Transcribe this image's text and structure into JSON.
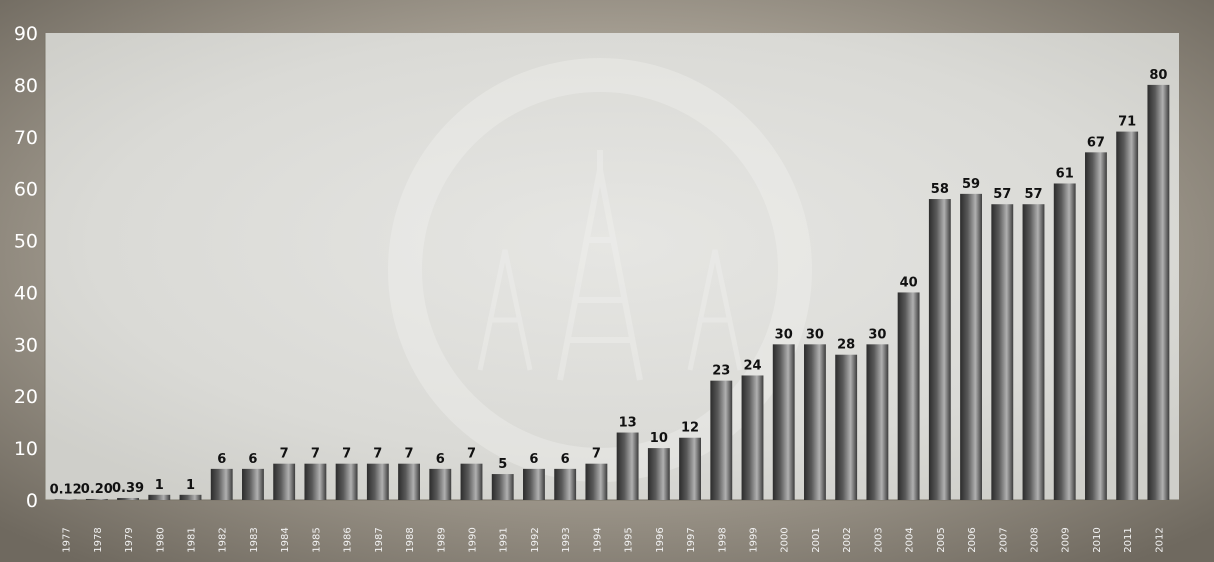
{
  "colors": {
    "frame": "#8e887c",
    "plot_bg": "#dcdcd8",
    "bar_dark": "#3a3a3a",
    "bar_light": "#a8a8a8",
    "tick_text": "#ffffff",
    "label_text": "#111111"
  },
  "chart_data": {
    "type": "bar",
    "title": "",
    "xlabel": "",
    "ylabel": "",
    "ylim": [
      0,
      90
    ],
    "yticks": [
      "0",
      "10",
      "20",
      "30",
      "40",
      "50",
      "60",
      "70",
      "80",
      "90"
    ],
    "grid": false,
    "categories": [
      "1977",
      "1978",
      "1979",
      "1980",
      "1981",
      "1982",
      "1983",
      "1984",
      "1985",
      "1986",
      "1987",
      "1988",
      "1989",
      "1990",
      "1991",
      "1992",
      "1993",
      "1994",
      "1995",
      "1996",
      "1997",
      "1998",
      "1999",
      "2000",
      "2001",
      "2002",
      "2003",
      "2004",
      "2005",
      "2006",
      "2007",
      "2008",
      "2009",
      "2010",
      "2011",
      "2012"
    ],
    "values": [
      0.12,
      0.2,
      0.39,
      1,
      1,
      6,
      6,
      7,
      7,
      7,
      7,
      7,
      6,
      7,
      5,
      6,
      6,
      7,
      13,
      10,
      12,
      23,
      24,
      30,
      30,
      28,
      30,
      40,
      58,
      59,
      57,
      57,
      61,
      67,
      71,
      80
    ],
    "value_labels": [
      "0.12",
      "0.20",
      "0.39",
      "1",
      "1",
      "6",
      "6",
      "7",
      "7",
      "7",
      "7",
      "7",
      "6",
      "7",
      "5",
      "6",
      "6",
      "7",
      "13",
      "10",
      "12",
      "23",
      "24",
      "30",
      "30",
      "28",
      "30",
      "40",
      "58",
      "59",
      "57",
      "57",
      "61",
      "67",
      "71",
      "80"
    ]
  }
}
